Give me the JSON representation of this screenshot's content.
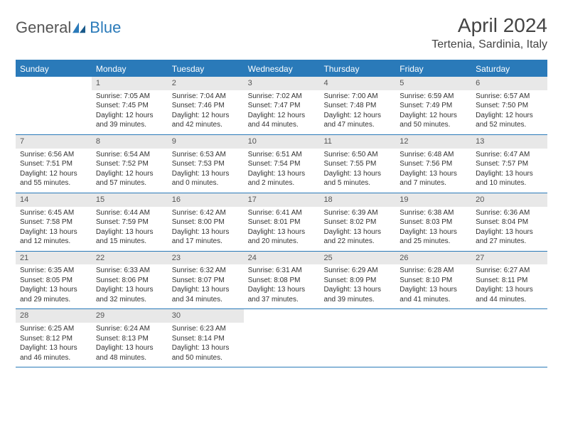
{
  "header": {
    "logo_general": "General",
    "logo_blue": "Blue",
    "month_title": "April 2024",
    "location": "Tertenia, Sardinia, Italy"
  },
  "colors": {
    "brand": "#2a7ab9",
    "daynum_bg": "#e8e8e8",
    "text": "#333333",
    "logo_gray": "#555555"
  },
  "weekdays": [
    "Sunday",
    "Monday",
    "Tuesday",
    "Wednesday",
    "Thursday",
    "Friday",
    "Saturday"
  ],
  "first_weekday_index": 1,
  "days": [
    {
      "n": 1,
      "sunrise": "7:05 AM",
      "sunset": "7:45 PM",
      "daylight": "12 hours and 39 minutes."
    },
    {
      "n": 2,
      "sunrise": "7:04 AM",
      "sunset": "7:46 PM",
      "daylight": "12 hours and 42 minutes."
    },
    {
      "n": 3,
      "sunrise": "7:02 AM",
      "sunset": "7:47 PM",
      "daylight": "12 hours and 44 minutes."
    },
    {
      "n": 4,
      "sunrise": "7:00 AM",
      "sunset": "7:48 PM",
      "daylight": "12 hours and 47 minutes."
    },
    {
      "n": 5,
      "sunrise": "6:59 AM",
      "sunset": "7:49 PM",
      "daylight": "12 hours and 50 minutes."
    },
    {
      "n": 6,
      "sunrise": "6:57 AM",
      "sunset": "7:50 PM",
      "daylight": "12 hours and 52 minutes."
    },
    {
      "n": 7,
      "sunrise": "6:56 AM",
      "sunset": "7:51 PM",
      "daylight": "12 hours and 55 minutes."
    },
    {
      "n": 8,
      "sunrise": "6:54 AM",
      "sunset": "7:52 PM",
      "daylight": "12 hours and 57 minutes."
    },
    {
      "n": 9,
      "sunrise": "6:53 AM",
      "sunset": "7:53 PM",
      "daylight": "13 hours and 0 minutes."
    },
    {
      "n": 10,
      "sunrise": "6:51 AM",
      "sunset": "7:54 PM",
      "daylight": "13 hours and 2 minutes."
    },
    {
      "n": 11,
      "sunrise": "6:50 AM",
      "sunset": "7:55 PM",
      "daylight": "13 hours and 5 minutes."
    },
    {
      "n": 12,
      "sunrise": "6:48 AM",
      "sunset": "7:56 PM",
      "daylight": "13 hours and 7 minutes."
    },
    {
      "n": 13,
      "sunrise": "6:47 AM",
      "sunset": "7:57 PM",
      "daylight": "13 hours and 10 minutes."
    },
    {
      "n": 14,
      "sunrise": "6:45 AM",
      "sunset": "7:58 PM",
      "daylight": "13 hours and 12 minutes."
    },
    {
      "n": 15,
      "sunrise": "6:44 AM",
      "sunset": "7:59 PM",
      "daylight": "13 hours and 15 minutes."
    },
    {
      "n": 16,
      "sunrise": "6:42 AM",
      "sunset": "8:00 PM",
      "daylight": "13 hours and 17 minutes."
    },
    {
      "n": 17,
      "sunrise": "6:41 AM",
      "sunset": "8:01 PM",
      "daylight": "13 hours and 20 minutes."
    },
    {
      "n": 18,
      "sunrise": "6:39 AM",
      "sunset": "8:02 PM",
      "daylight": "13 hours and 22 minutes."
    },
    {
      "n": 19,
      "sunrise": "6:38 AM",
      "sunset": "8:03 PM",
      "daylight": "13 hours and 25 minutes."
    },
    {
      "n": 20,
      "sunrise": "6:36 AM",
      "sunset": "8:04 PM",
      "daylight": "13 hours and 27 minutes."
    },
    {
      "n": 21,
      "sunrise": "6:35 AM",
      "sunset": "8:05 PM",
      "daylight": "13 hours and 29 minutes."
    },
    {
      "n": 22,
      "sunrise": "6:33 AM",
      "sunset": "8:06 PM",
      "daylight": "13 hours and 32 minutes."
    },
    {
      "n": 23,
      "sunrise": "6:32 AM",
      "sunset": "8:07 PM",
      "daylight": "13 hours and 34 minutes."
    },
    {
      "n": 24,
      "sunrise": "6:31 AM",
      "sunset": "8:08 PM",
      "daylight": "13 hours and 37 minutes."
    },
    {
      "n": 25,
      "sunrise": "6:29 AM",
      "sunset": "8:09 PM",
      "daylight": "13 hours and 39 minutes."
    },
    {
      "n": 26,
      "sunrise": "6:28 AM",
      "sunset": "8:10 PM",
      "daylight": "13 hours and 41 minutes."
    },
    {
      "n": 27,
      "sunrise": "6:27 AM",
      "sunset": "8:11 PM",
      "daylight": "13 hours and 44 minutes."
    },
    {
      "n": 28,
      "sunrise": "6:25 AM",
      "sunset": "8:12 PM",
      "daylight": "13 hours and 46 minutes."
    },
    {
      "n": 29,
      "sunrise": "6:24 AM",
      "sunset": "8:13 PM",
      "daylight": "13 hours and 48 minutes."
    },
    {
      "n": 30,
      "sunrise": "6:23 AM",
      "sunset": "8:14 PM",
      "daylight": "13 hours and 50 minutes."
    }
  ],
  "labels": {
    "sunrise": "Sunrise: ",
    "sunset": "Sunset: ",
    "daylight": "Daylight: "
  }
}
